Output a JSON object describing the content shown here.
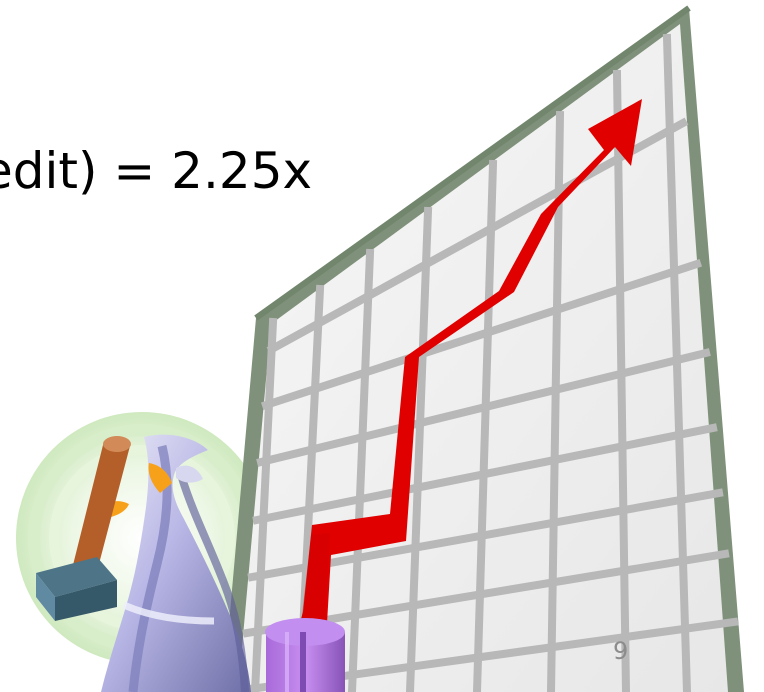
{
  "slide": {
    "formula_text": "edit) = 2.25x",
    "page_number": "9"
  },
  "clipart": {
    "subject": "person-pushing-up-growth-chart",
    "icons": [
      "wizard-figure-icon",
      "mallet-icon",
      "growth-chart-icon",
      "trend-arrow-icon"
    ],
    "colors": {
      "board_frame": "#7f917a",
      "board_fill": "#efefef",
      "grid_lines": "#b8b8b8",
      "arrow": "#e00000",
      "halo": "#cfe9bf",
      "robe": "#b8b6e5",
      "robe_shadow": "#6e6fa7",
      "mallet_handle": "#b45f2a",
      "mallet_head": "#4e7488",
      "post": "#a86ad9"
    }
  }
}
